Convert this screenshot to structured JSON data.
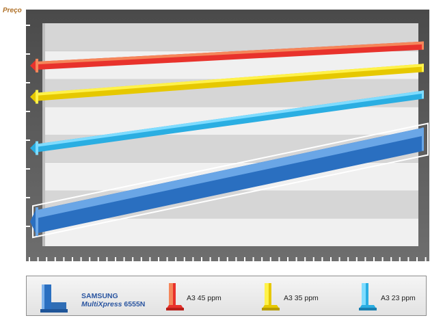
{
  "chart_data": {
    "type": "line",
    "ylabel": "Preço",
    "x": [
      0,
      1
    ],
    "y_range": [
      0,
      10
    ],
    "grid": true,
    "legend_position": "bottom",
    "series": [
      {
        "name": "A3 45 ppm",
        "color": "#e8322c",
        "highlight": "#f5865a",
        "values": [
          8.1,
          9.0
        ]
      },
      {
        "name": "A3 35 ppm",
        "color": "#e6c800",
        "highlight": "#fff24a",
        "values": [
          6.7,
          8.0
        ]
      },
      {
        "name": "A3 23 ppm",
        "color": "#2aaee2",
        "highlight": "#7fdcff",
        "values": [
          4.4,
          6.8
        ]
      },
      {
        "name": "SAMSUNG MultiXpress 6555N",
        "color": "#2a6fc0",
        "highlight": "#6aa6e6",
        "values": [
          1.1,
          4.8
        ]
      }
    ]
  },
  "legend": {
    "samsung_brand": "SAMSUNG",
    "samsung_model": "MultiXpress",
    "samsung_model_number": " 6555N",
    "item1": "A3 45 ppm",
    "item2": "A3 35 ppm",
    "item3": "A3 23 ppm"
  }
}
